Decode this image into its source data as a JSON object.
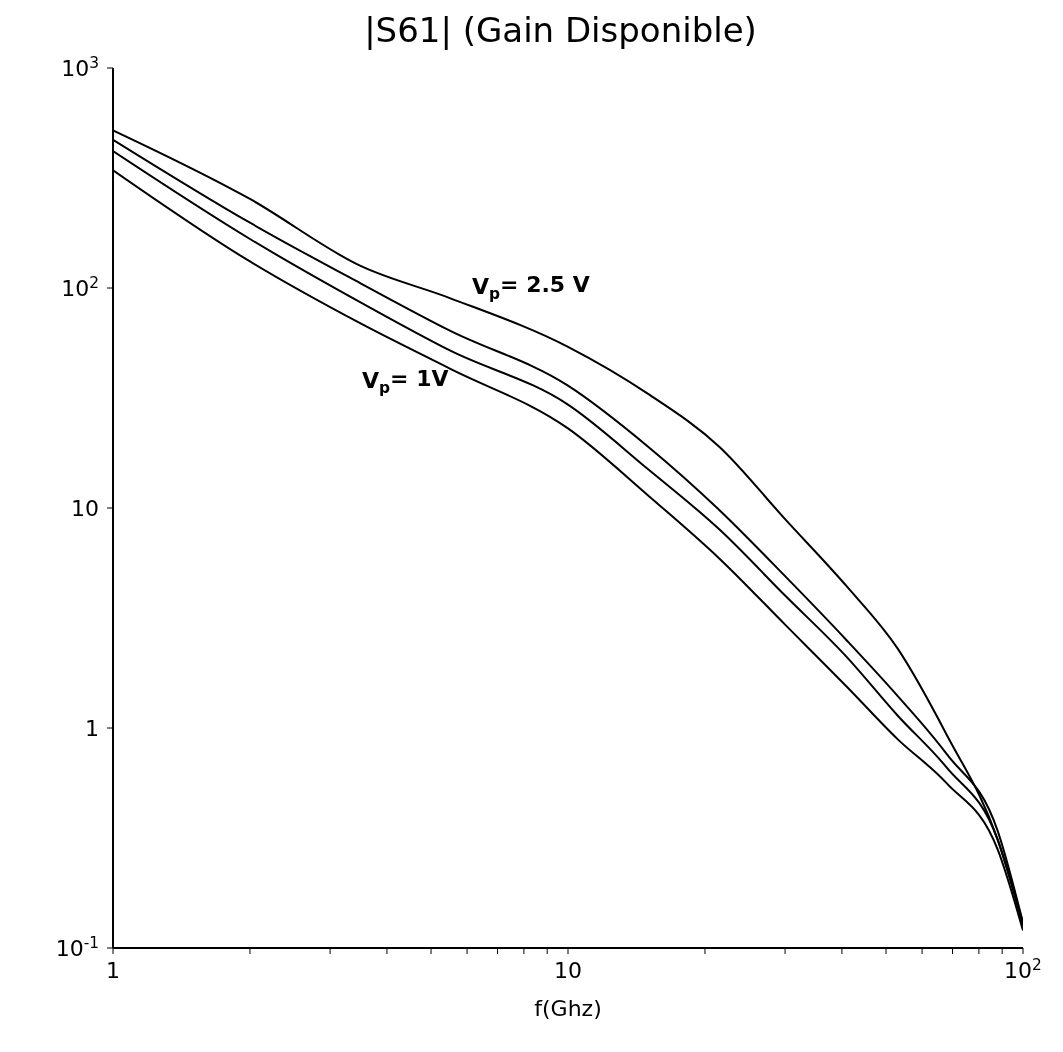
{
  "chart_data": {
    "type": "line",
    "title": "|S61| (Gain Disponible)",
    "xlabel": "f(Ghz)",
    "log": "xy",
    "grid": false,
    "legend": false,
    "marker": "none",
    "line_style": "solid",
    "x": [
      1,
      2,
      3.5,
      5.5,
      10,
      15,
      21.5,
      30,
      41,
      53,
      68,
      88,
      100
    ],
    "series": [
      {
        "color": "#000000",
        "values": [
          521,
          254,
          126,
          90,
          54,
          33,
          19,
          8.9,
          4.4,
          2.3,
          0.93,
          0.31,
          0.13
        ]
      },
      {
        "color": "#000000",
        "values": [
          472,
          198,
          105,
          64,
          36,
          19,
          9.8,
          4.9,
          2.5,
          1.4,
          0.76,
          0.34,
          0.13
        ]
      },
      {
        "color": "#000000",
        "values": [
          419,
          167,
          86,
          52,
          29.5,
          15,
          8,
          4,
          2.1,
          1.14,
          0.66,
          0.31,
          0.126
        ]
      },
      {
        "color": "#000000",
        "values": [
          343,
          132,
          69,
          43,
          23,
          11.4,
          5.9,
          2.95,
          1.54,
          0.89,
          0.56,
          0.28,
          0.12
        ]
      }
    ],
    "xlim": [
      1,
      100
    ],
    "ylim": [
      0.1,
      1000
    ],
    "xticks": [
      1,
      {
        "value": 2,
        "label": null
      },
      {
        "value": 3,
        "label": null
      },
      {
        "value": 4,
        "label": null
      },
      {
        "value": 5,
        "label": null
      },
      {
        "value": 6,
        "label": null
      },
      {
        "value": 7,
        "label": null
      },
      {
        "value": 8,
        "label": null
      },
      {
        "value": 9,
        "label": null
      },
      10,
      {
        "value": 20,
        "label": null
      },
      {
        "value": 30,
        "label": null
      },
      {
        "value": 40,
        "label": null
      },
      {
        "value": 50,
        "label": null
      },
      {
        "value": 60,
        "label": null
      },
      {
        "value": 70,
        "label": null
      },
      {
        "value": 80,
        "label": null
      },
      {
        "value": 90,
        "label": null
      },
      {
        "value": 100,
        "label": "10$^{2}$"
      }
    ],
    "yticks": [
      {
        "value": 0.1,
        "label": "10$^{-1}$"
      },
      1,
      10,
      {
        "value": 100,
        "label": "10$^{2}$"
      },
      {
        "value": 1000,
        "label": "10$^{3}$"
      }
    ],
    "annotations": [
      "V$_{p}$= 2.5 V",
      "V$_{p}$= 1V"
    ]
  }
}
